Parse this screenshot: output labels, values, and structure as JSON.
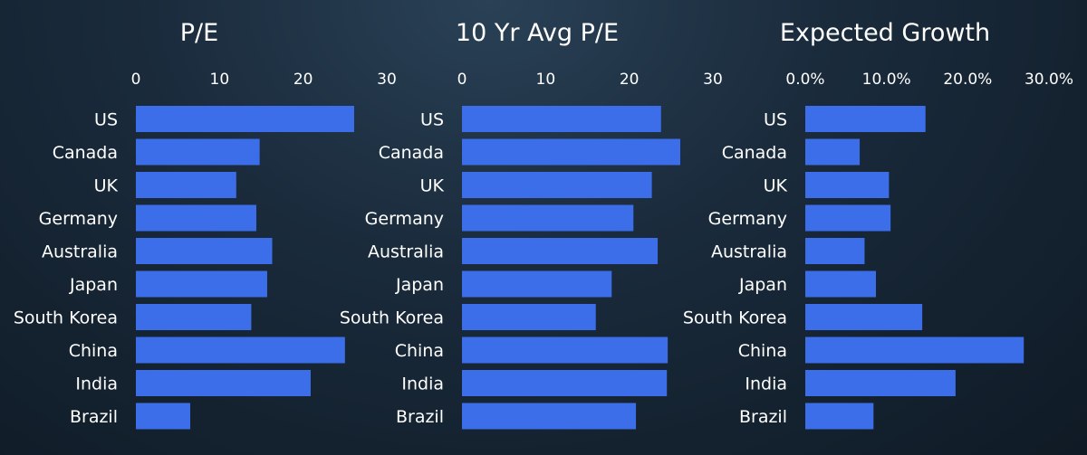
{
  "colors": {
    "bar": "#3b6ee8",
    "text": "#ffffff"
  },
  "chart_data": [
    {
      "type": "bar",
      "orientation": "horizontal",
      "title": "P/E",
      "categories": [
        "US",
        "Canada",
        "UK",
        "Germany",
        "Australia",
        "Japan",
        "South Korea",
        "China",
        "India",
        "Brazil"
      ],
      "values": [
        26.1,
        14.8,
        12.0,
        14.4,
        16.3,
        15.7,
        13.8,
        25.0,
        20.9,
        6.5
      ],
      "xlim": [
        0,
        30
      ],
      "ticks": [
        "0",
        "10",
        "20",
        "30"
      ],
      "tick_values": [
        0,
        10,
        20,
        30
      ],
      "grid": false
    },
    {
      "type": "bar",
      "orientation": "horizontal",
      "title": "10 Yr Avg P/E",
      "categories": [
        "US",
        "Canada",
        "UK",
        "Germany",
        "Australia",
        "Japan",
        "South Korea",
        "China",
        "India",
        "Brazil"
      ],
      "values": [
        23.8,
        26.1,
        22.7,
        20.5,
        23.4,
        17.9,
        16.0,
        24.6,
        24.5,
        20.8
      ],
      "xlim": [
        0,
        30
      ],
      "ticks": [
        "0",
        "10",
        "20",
        "30"
      ],
      "tick_values": [
        0,
        10,
        20,
        30
      ],
      "grid": false
    },
    {
      "type": "bar",
      "orientation": "horizontal",
      "title": "Expected Growth",
      "categories": [
        "US",
        "Canada",
        "UK",
        "Germany",
        "Australia",
        "Japan",
        "South Korea",
        "China",
        "India",
        "Brazil"
      ],
      "values": [
        0.148,
        0.067,
        0.103,
        0.105,
        0.073,
        0.087,
        0.144,
        0.269,
        0.185,
        0.084
      ],
      "xlim": [
        0,
        0.3
      ],
      "ticks": [
        "0.0%",
        "10.0%",
        "20.0%",
        "30.0%"
      ],
      "tick_values": [
        0,
        0.1,
        0.2,
        0.3
      ],
      "grid": false
    }
  ]
}
